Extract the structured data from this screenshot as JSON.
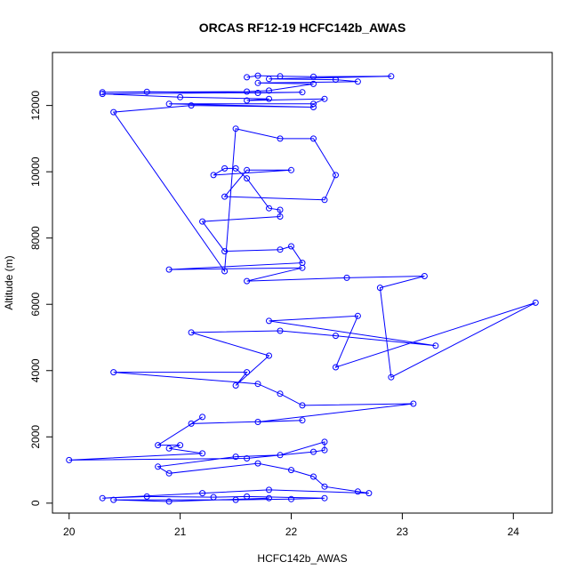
{
  "chart_data": {
    "type": "line",
    "title": "ORCAS RF12-19 HCFC142b_AWAS",
    "xlabel": "HCFC142b_AWAS",
    "ylabel": "Altitude (m)",
    "xlim": [
      19.85,
      24.35
    ],
    "ylim": [
      -300,
      13600
    ],
    "xticks": [
      20,
      21,
      22,
      23,
      24
    ],
    "yticks": [
      0,
      2000,
      4000,
      6000,
      8000,
      10000,
      12000
    ],
    "xtick_labels": [
      "20",
      "21",
      "22",
      "23",
      "24"
    ],
    "ytick_labels": [
      "0",
      "2000",
      "4000",
      "6000",
      "8000",
      "10000",
      "12000"
    ],
    "grid": false,
    "color": "#0000ff",
    "marker": "open-circle",
    "series": [
      {
        "points": [
          [
            21.6,
            12850
          ],
          [
            21.7,
            12900
          ],
          [
            21.9,
            12880
          ],
          [
            22.2,
            12870
          ],
          [
            22.9,
            12880
          ],
          [
            21.8,
            12800
          ],
          [
            22.4,
            12780
          ],
          [
            22.6,
            12720
          ],
          [
            21.7,
            12680
          ],
          [
            22.2,
            12650
          ],
          [
            21.8,
            12450
          ],
          [
            21.6,
            12420
          ],
          [
            20.3,
            12400
          ],
          [
            20.7,
            12410
          ],
          [
            21.7,
            12380
          ],
          [
            22.1,
            12400
          ],
          [
            20.3,
            12350
          ],
          [
            21.0,
            12250
          ],
          [
            21.8,
            12200
          ],
          [
            21.6,
            12150
          ],
          [
            22.3,
            12200
          ],
          [
            22.2,
            12050
          ],
          [
            20.9,
            12050
          ],
          [
            22.2,
            11950
          ],
          [
            21.1,
            12000
          ],
          [
            20.4,
            11800
          ],
          [
            21.4,
            7000
          ],
          [
            21.5,
            11300
          ],
          [
            21.9,
            11000
          ],
          [
            22.2,
            11000
          ],
          [
            22.4,
            9900
          ],
          [
            22.3,
            9150
          ],
          [
            21.4,
            9250
          ],
          [
            21.6,
            10050
          ],
          [
            22.0,
            10050
          ],
          [
            21.3,
            9900
          ],
          [
            21.4,
            10100
          ],
          [
            21.5,
            10100
          ],
          [
            21.6,
            9800
          ],
          [
            21.8,
            8900
          ],
          [
            21.9,
            8850
          ],
          [
            21.9,
            8650
          ],
          [
            21.2,
            8500
          ],
          [
            21.4,
            7600
          ],
          [
            21.9,
            7650
          ],
          [
            22.0,
            7750
          ],
          [
            22.1,
            7250
          ],
          [
            20.9,
            7050
          ],
          [
            22.1,
            7100
          ],
          [
            21.6,
            6700
          ],
          [
            22.5,
            6800
          ],
          [
            23.2,
            6850
          ],
          [
            22.8,
            6500
          ],
          [
            22.9,
            3800
          ],
          [
            24.2,
            6050
          ],
          [
            22.4,
            4100
          ],
          [
            22.6,
            5650
          ],
          [
            21.8,
            5500
          ],
          [
            23.3,
            4750
          ],
          [
            22.4,
            5050
          ],
          [
            21.9,
            5200
          ],
          [
            21.1,
            5150
          ],
          [
            21.8,
            4450
          ],
          [
            21.5,
            3550
          ],
          [
            21.6,
            3950
          ],
          [
            20.4,
            3950
          ],
          [
            21.7,
            3600
          ],
          [
            21.9,
            3300
          ],
          [
            22.1,
            2950
          ],
          [
            23.1,
            3000
          ],
          [
            21.7,
            2450
          ],
          [
            22.1,
            2500
          ],
          [
            21.1,
            2400
          ],
          [
            21.2,
            2600
          ],
          [
            20.8,
            1750
          ],
          [
            21.0,
            1750
          ],
          [
            20.9,
            1650
          ],
          [
            21.2,
            1500
          ],
          [
            20.0,
            1300
          ],
          [
            21.6,
            1350
          ],
          [
            22.2,
            1550
          ],
          [
            22.3,
            1600
          ],
          [
            22.3,
            1850
          ],
          [
            21.9,
            1450
          ],
          [
            21.5,
            1400
          ],
          [
            20.8,
            1100
          ],
          [
            20.9,
            900
          ],
          [
            21.7,
            1200
          ],
          [
            22.0,
            1000
          ],
          [
            22.2,
            800
          ],
          [
            22.3,
            500
          ],
          [
            22.6,
            350
          ],
          [
            22.7,
            300
          ],
          [
            21.8,
            400
          ],
          [
            21.2,
            300
          ],
          [
            20.3,
            150
          ],
          [
            20.7,
            200
          ],
          [
            21.3,
            180
          ],
          [
            21.6,
            200
          ],
          [
            22.3,
            150
          ],
          [
            22.0,
            120
          ],
          [
            21.5,
            100
          ],
          [
            20.4,
            100
          ],
          [
            20.9,
            50
          ],
          [
            21.8,
            150
          ]
        ]
      }
    ]
  }
}
